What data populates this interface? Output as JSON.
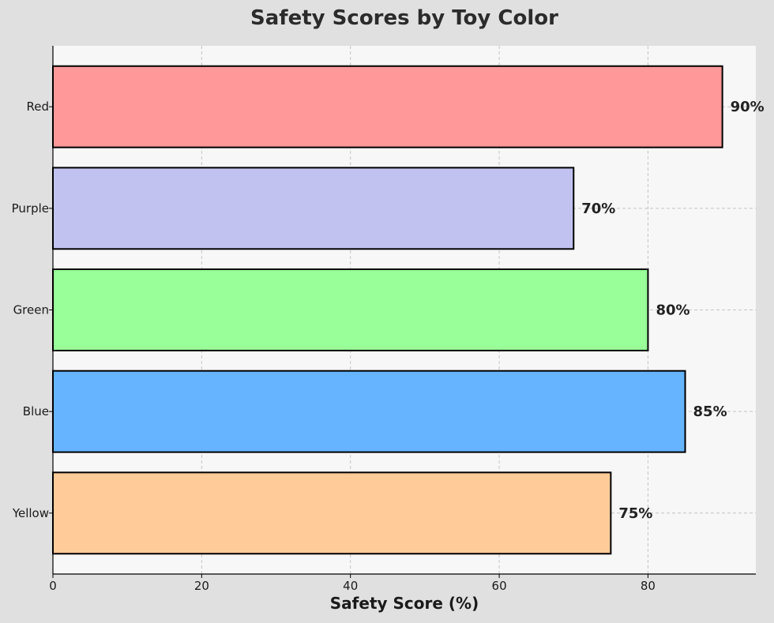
{
  "chart_data": {
    "type": "bar",
    "orientation": "horizontal",
    "title": "Safety Scores by Toy Color",
    "xlabel": "Safety Score (%)",
    "ylabel": "",
    "categories": [
      "Yellow",
      "Blue",
      "Green",
      "Purple",
      "Red"
    ],
    "values": [
      75,
      85,
      80,
      70,
      90
    ],
    "value_labels": [
      "75%",
      "85%",
      "80%",
      "70%",
      "90%"
    ],
    "bar_colors": [
      "#ffcc99",
      "#66b3ff",
      "#99ff99",
      "#c2c2f0",
      "#ff9999"
    ],
    "edge_color": "#000000",
    "xlim": [
      0,
      94.5
    ],
    "xticks": [
      0,
      20,
      40,
      60,
      80
    ],
    "grid": true,
    "grid_style": "dashed",
    "background": "#f7f7f7",
    "figure_background": "#e0e0e0"
  }
}
